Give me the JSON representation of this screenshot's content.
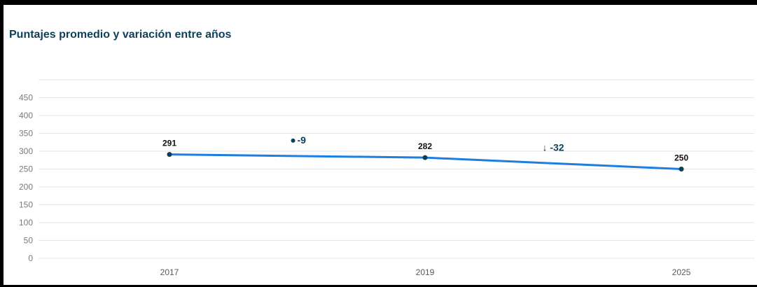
{
  "header": {
    "title": "Puntajes promedio y variación entre años"
  },
  "colors": {
    "line": "#1f7ee0",
    "marker": "#0d3f5a",
    "title": "#0d3f5a",
    "delta": "#0d3f5a"
  },
  "chart_data": {
    "type": "line",
    "title": "Puntajes promedio y variación entre años",
    "xlabel": "",
    "ylabel": "",
    "categories": [
      "2017",
      "2019",
      "2025"
    ],
    "series": [
      {
        "values": [
          291,
          282,
          250
        ]
      }
    ],
    "data_labels": [
      "291",
      "282",
      "250"
    ],
    "yticks": [
      0,
      50,
      100,
      150,
      200,
      250,
      300,
      350,
      400,
      450
    ],
    "ylim": [
      0,
      500
    ],
    "grid": true,
    "annotations": [
      {
        "between": [
          "2017",
          "2019"
        ],
        "text": "-9",
        "icon": "dot-icon"
      },
      {
        "between": [
          "2019",
          "2025"
        ],
        "text": "↓ -32",
        "icon": "down-arrow-icon"
      }
    ]
  }
}
